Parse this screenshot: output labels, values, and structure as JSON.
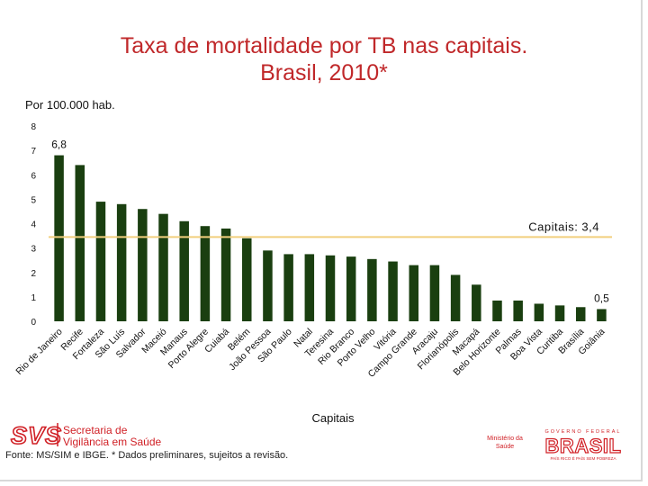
{
  "slide": {
    "title_line1": "Taxa de mortalidade por TB nas capitais.",
    "title_line2": "Brasil, 2010*",
    "source_note": "Fonte: MS/SIM e IBGE. * Dados preliminares, sujeitos a revisão.",
    "logo_svs_mark": "SVS",
    "logo_svs_line1": "Secretaria de",
    "logo_svs_line2": "Vigilância em Saúde",
    "logo_ms_line1": "Ministério da",
    "logo_ms_line2": "Saúde",
    "logo_gov_top": "GOVERNO FEDERAL",
    "logo_gov_word": "BRASIL",
    "logo_gov_slogan": "PAÍS RICO É PAÍS SEM POBREZA"
  },
  "colors": {
    "title": "#c0282a",
    "bar": "#1a3f10",
    "reference_line": "#f2cf7e",
    "logo_red": "#d01f25"
  },
  "chart_data": {
    "type": "bar",
    "ylabel": "Por 100.000 hab.",
    "xlabel": "Capitais",
    "ylim": [
      0,
      8
    ],
    "yticks": [
      0,
      1,
      2,
      3,
      4,
      5,
      6,
      7,
      8
    ],
    "grid": false,
    "categories": [
      "Rio de Janeiro",
      "Recife",
      "Fortaleza",
      "São Luís",
      "Salvador",
      "Maceió",
      "Manaus",
      "Porto Alegre",
      "Cuiabá",
      "Belém",
      "João Pessoa",
      "São Paulo",
      "Natal",
      "Teresina",
      "Rio Branco",
      "Porto Velho",
      "Vitória",
      "Campo Grande",
      "Aracaju",
      "Florianópolis",
      "Macapá",
      "Belo Horizonte",
      "Palmas",
      "Boa Vista",
      "Curitiba",
      "Brasília",
      "Goiânia"
    ],
    "values": [
      6.8,
      6.4,
      4.9,
      4.8,
      4.6,
      4.4,
      4.1,
      3.9,
      3.8,
      3.4,
      2.9,
      2.75,
      2.75,
      2.7,
      2.65,
      2.55,
      2.45,
      2.3,
      2.3,
      1.9,
      1.5,
      0.85,
      0.85,
      0.72,
      0.65,
      0.58,
      0.5
    ],
    "data_labels": [
      {
        "index": 0,
        "text": "6,8"
      },
      {
        "index": 26,
        "text": "0,5"
      }
    ],
    "reference_line": {
      "value": 3.45,
      "label": "Capitais: 3,4"
    }
  }
}
